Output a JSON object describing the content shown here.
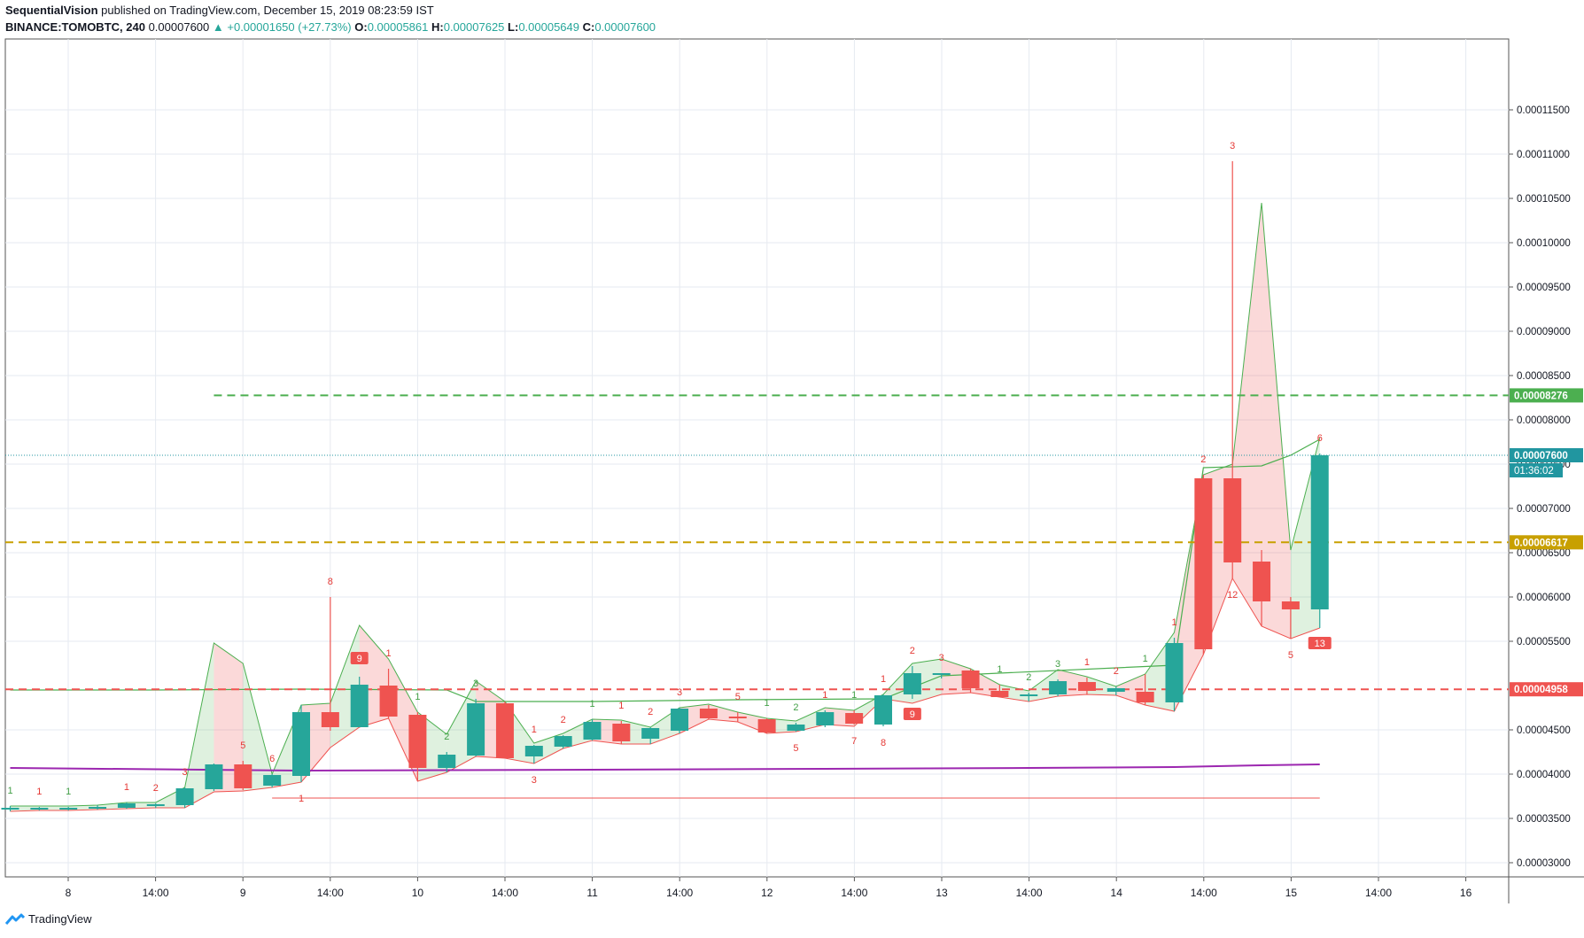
{
  "header": {
    "author": "SequentialVision",
    "published": "published on TradingView.com, December 15, 2019 08:23:59 IST",
    "symbol": "BINANCE:TOMOBTC, 240",
    "last": "0.00007600",
    "change": "▲ +0.00001650 (+27.73%)",
    "o_label": "O:",
    "o": "0.00005861",
    "h_label": "H:",
    "h": "0.00007625",
    "l_label": "L:",
    "l": "0.00005649",
    "c_label": "C:",
    "c": "0.00007600"
  },
  "footer": {
    "brand": "TradingView",
    "logo_icon": "tradingview-logo-icon"
  },
  "colors": {
    "up": "#26a69a",
    "down": "#ef5350",
    "grid": "#e6eaf0",
    "green_line": "#4caf50",
    "red_line": "#ef5350",
    "orange_line": "#c8a000",
    "purple_line": "#9c27b0",
    "dotted_line": "#2196a0"
  },
  "chart_data": {
    "type": "candlestick",
    "ylim": [
      2.84e-05,
      0.000123
    ],
    "y_ticks": [
      "0.00011500",
      "0.00011000",
      "0.00010500",
      "0.00010000",
      "0.00009500",
      "0.00009000",
      "0.00008500",
      "0.00008000",
      "0.00007500",
      "0.00007000",
      "0.00006500",
      "0.00006000",
      "0.00005500",
      "0.00004500",
      "0.00004000",
      "0.00003500",
      "0.00003000"
    ],
    "x_ticks": [
      "8",
      "14:00",
      "9",
      "14:00",
      "10",
      "14:00",
      "11",
      "14:00",
      "12",
      "14:00",
      "13",
      "14:00",
      "14",
      "14:00",
      "15",
      "14:00",
      "16"
    ],
    "candles": [
      {
        "o": 3.62e-05,
        "h": 3.64e-05,
        "l": 3.58e-05,
        "c": 3.62e-05
      },
      {
        "o": 3.61e-05,
        "h": 3.63e-05,
        "l": 3.59e-05,
        "c": 3.62e-05
      },
      {
        "o": 3.62e-05,
        "h": 3.63e-05,
        "l": 3.59e-05,
        "c": 3.62e-05
      },
      {
        "o": 3.62e-05,
        "h": 3.65e-05,
        "l": 3.6e-05,
        "c": 3.63e-05
      },
      {
        "o": 3.62e-05,
        "h": 3.68e-05,
        "l": 3.61e-05,
        "c": 3.67e-05
      },
      {
        "o": 3.66e-05,
        "h": 3.67e-05,
        "l": 3.62e-05,
        "c": 3.66e-05
      },
      {
        "o": 3.65e-05,
        "h": 3.85e-05,
        "l": 3.62e-05,
        "c": 3.84e-05
      },
      {
        "o": 3.83e-05,
        "h": 4.12e-05,
        "l": 3.81e-05,
        "c": 4.11e-05
      },
      {
        "o": 4.11e-05,
        "h": 4.15e-05,
        "l": 3.82e-05,
        "c": 3.84e-05
      },
      {
        "o": 3.87e-05,
        "h": 4e-05,
        "l": 3.85e-05,
        "c": 3.99e-05
      },
      {
        "o": 3.98e-05,
        "h": 4.78e-05,
        "l": 3.91e-05,
        "c": 4.7e-05
      },
      {
        "o": 4.7e-05,
        "h": 6e-05,
        "l": 4.49e-05,
        "c": 4.53e-05
      },
      {
        "o": 4.53e-05,
        "h": 5.1e-05,
        "l": 4.53e-05,
        "c": 5.01e-05
      },
      {
        "o": 5e-05,
        "h": 5.19e-05,
        "l": 4.63e-05,
        "c": 4.65e-05
      },
      {
        "o": 4.67e-05,
        "h": 4.7e-05,
        "l": 3.92e-05,
        "c": 4.07e-05
      },
      {
        "o": 4.07e-05,
        "h": 4.25e-05,
        "l": 4.02e-05,
        "c": 4.22e-05
      },
      {
        "o": 4.21e-05,
        "h": 4.85e-05,
        "l": 4.2e-05,
        "c": 4.8e-05
      },
      {
        "o": 4.8e-05,
        "h": 4.82e-05,
        "l": 4.18e-05,
        "c": 4.18e-05
      },
      {
        "o": 4.2e-05,
        "h": 4.33e-05,
        "l": 4.12e-05,
        "c": 4.32e-05
      },
      {
        "o": 4.31e-05,
        "h": 4.44e-05,
        "l": 4.29e-05,
        "c": 4.43e-05
      },
      {
        "o": 4.39e-05,
        "h": 4.62e-05,
        "l": 4.38e-05,
        "c": 4.59e-05
      },
      {
        "o": 4.57e-05,
        "h": 4.6e-05,
        "l": 4.34e-05,
        "c": 4.37e-05
      },
      {
        "o": 4.4e-05,
        "h": 4.53e-05,
        "l": 4.34e-05,
        "c": 4.52e-05
      },
      {
        "o": 4.49e-05,
        "h": 4.75e-05,
        "l": 4.46e-05,
        "c": 4.74e-05
      },
      {
        "o": 4.74e-05,
        "h": 4.78e-05,
        "l": 4.62e-05,
        "c": 4.63e-05
      },
      {
        "o": 4.65e-05,
        "h": 4.7e-05,
        "l": 4.59e-05,
        "c": 4.63e-05
      },
      {
        "o": 4.62e-05,
        "h": 4.63e-05,
        "l": 4.46e-05,
        "c": 4.47e-05
      },
      {
        "o": 4.49e-05,
        "h": 4.58e-05,
        "l": 4.48e-05,
        "c": 4.56e-05
      },
      {
        "o": 4.55e-05,
        "h": 4.72e-05,
        "l": 4.53e-05,
        "c": 4.7e-05
      },
      {
        "o": 4.69e-05,
        "h": 4.72e-05,
        "l": 4.56e-05,
        "c": 4.57e-05
      },
      {
        "o": 4.56e-05,
        "h": 4.9e-05,
        "l": 4.54e-05,
        "c": 4.89e-05
      },
      {
        "o": 4.9e-05,
        "h": 5.22e-05,
        "l": 4.85e-05,
        "c": 5.14e-05
      },
      {
        "o": 5.12e-05,
        "h": 5.14e-05,
        "l": 5.08e-05,
        "c": 5.14e-05
      },
      {
        "o": 5.17e-05,
        "h": 5.19e-05,
        "l": 4.92e-05,
        "c": 4.97e-05
      },
      {
        "o": 4.94e-05,
        "h": 5.01e-05,
        "l": 4.87e-05,
        "c": 4.87e-05
      },
      {
        "o": 4.88e-05,
        "h": 4.92e-05,
        "l": 4.82e-05,
        "c": 4.9e-05
      },
      {
        "o": 4.9e-05,
        "h": 5.07e-05,
        "l": 4.88e-05,
        "c": 5.05e-05
      },
      {
        "o": 5.04e-05,
        "h": 5.09e-05,
        "l": 4.9e-05,
        "c": 4.94e-05
      },
      {
        "o": 4.93e-05,
        "h": 4.99e-05,
        "l": 4.89e-05,
        "c": 4.97e-05
      },
      {
        "o": 4.93e-05,
        "h": 5.13e-05,
        "l": 4.78e-05,
        "c": 4.81e-05
      },
      {
        "o": 4.81e-05,
        "h": 5.54e-05,
        "l": 4.71e-05,
        "c": 5.48e-05
      },
      {
        "o": 7.34e-05,
        "h": 7.38e-05,
        "l": 5.35e-05,
        "c": 5.41e-05
      },
      {
        "o": 7.34e-05,
        "h": 0.0001092,
        "l": 6.21e-05,
        "c": 6.39e-05
      },
      {
        "o": 6.4e-05,
        "h": 6.53e-05,
        "l": 5.67e-05,
        "c": 5.95e-05
      },
      {
        "o": 5.95e-05,
        "h": 6e-05,
        "l": 5.53e-05,
        "c": 5.86e-05
      },
      {
        "o": 5.86e-05,
        "h": 7.62e-05,
        "l": 5.65e-05,
        "c": 7.6e-05
      }
    ],
    "horizontal_levels": [
      {
        "label": "0.00008276",
        "value": 8.276e-05,
        "style": "dashed",
        "color": "#4caf50"
      },
      {
        "label": "0.00007600",
        "value": 7.6e-05,
        "style": "dotted",
        "color": "#2196a0",
        "sublabel": "01:36:02"
      },
      {
        "label": "0.00006617",
        "value": 6.617e-05,
        "style": "dashed",
        "color": "#c8a000"
      },
      {
        "label": "0.00004958",
        "value": 4.958e-05,
        "style": "dashed",
        "color": "#ef5350"
      }
    ],
    "extra_lines": [
      {
        "name": "support",
        "value": 3.73e-05,
        "color": "#ef5350"
      }
    ],
    "upper_band": [
      3.64e-05,
      3.64e-05,
      3.64e-05,
      3.65e-05,
      3.68e-05,
      3.68e-05,
      3.85e-05,
      5.48e-05,
      5.25e-05,
      4e-05,
      4.78e-05,
      4.8e-05,
      5.68e-05,
      5.3e-05,
      4.7e-05,
      4.45e-05,
      5.05e-05,
      4.82e-05,
      4.35e-05,
      4.46e-05,
      4.62e-05,
      4.61e-05,
      4.53e-05,
      4.75e-05,
      4.79e-05,
      4.7e-05,
      4.63e-05,
      4.6e-05,
      4.75e-05,
      4.72e-05,
      4.9e-05,
      5.25e-05,
      5.3e-05,
      5.19e-05,
      5.01e-05,
      4.94e-05,
      5.18e-05,
      5.1e-05,
      4.99e-05,
      5.13e-05,
      5.6e-05,
      7.38e-05,
      7.5e-05,
      0.0001045,
      6.53e-05,
      7.8e-05
    ],
    "lower_band": [
      3.58e-05,
      3.59e-05,
      3.59e-05,
      3.6e-05,
      3.61e-05,
      3.62e-05,
      3.62e-05,
      3.8e-05,
      3.81e-05,
      3.85e-05,
      3.91e-05,
      4.3e-05,
      4.53e-05,
      4.63e-05,
      3.92e-05,
      4.02e-05,
      4.2e-05,
      4.18e-05,
      4.12e-05,
      4.29e-05,
      4.38e-05,
      4.34e-05,
      4.34e-05,
      4.46e-05,
      4.62e-05,
      4.59e-05,
      4.46e-05,
      4.48e-05,
      4.56e-05,
      4.54e-05,
      4.85e-05,
      4.8e-05,
      4.9e-05,
      4.92e-05,
      4.87e-05,
      4.82e-05,
      4.88e-05,
      4.9e-05,
      4.89e-05,
      4.78e-05,
      4.71e-05,
      5.35e-05,
      6.21e-05,
      5.67e-05,
      5.53e-05,
      5.65e-05
    ],
    "trend_line": [
      [
        0,
        4.95e-05
      ],
      [
        5,
        4.95e-05
      ],
      [
        10,
        4.96e-05
      ],
      [
        15,
        4.95e-05
      ],
      [
        16,
        4.82e-05
      ],
      [
        18,
        4.82e-05
      ],
      [
        20,
        4.82e-05
      ],
      [
        25,
        4.84e-05
      ],
      [
        30,
        4.85e-05
      ],
      [
        32,
        5.11e-05
      ],
      [
        40,
        5.23e-05
      ],
      [
        41,
        7.46e-05
      ],
      [
        43,
        7.48e-05
      ],
      [
        44,
        7.6e-05
      ],
      [
        45,
        7.78e-05
      ]
    ],
    "ma_line": [
      [
        0,
        4.07e-05
      ],
      [
        10,
        4.04e-05
      ],
      [
        20,
        4.05e-05
      ],
      [
        28,
        4.06e-05
      ],
      [
        35,
        4.07e-05
      ],
      [
        40,
        4.08e-05
      ],
      [
        43,
        4.1e-05
      ],
      [
        45,
        4.11e-05
      ]
    ],
    "counts_above": [
      {
        "i": 0,
        "t": "1",
        "c": "green"
      },
      {
        "i": 1,
        "t": "1",
        "c": "red"
      },
      {
        "i": 2,
        "t": "1",
        "c": "green"
      },
      {
        "i": 4,
        "t": "1",
        "c": "red"
      },
      {
        "i": 5,
        "t": "2",
        "c": "red"
      },
      {
        "i": 6,
        "t": "3",
        "c": "red"
      },
      {
        "i": 8,
        "t": "5",
        "c": "red"
      },
      {
        "i": 9,
        "t": "6",
        "c": "red"
      },
      {
        "i": 11,
        "t": "8",
        "c": "red"
      },
      {
        "i": 13,
        "t": "1",
        "c": "red"
      },
      {
        "i": 14,
        "t": "1",
        "c": "green"
      },
      {
        "i": 15,
        "t": "2",
        "c": "green"
      },
      {
        "i": 16,
        "t": "3",
        "c": "green"
      },
      {
        "i": 18,
        "t": "1",
        "c": "red"
      },
      {
        "i": 19,
        "t": "2",
        "c": "red"
      },
      {
        "i": 20,
        "t": "1",
        "c": "green"
      },
      {
        "i": 21,
        "t": "1",
        "c": "red"
      },
      {
        "i": 22,
        "t": "2",
        "c": "red"
      },
      {
        "i": 23,
        "t": "3",
        "c": "red"
      },
      {
        "i": 25,
        "t": "5",
        "c": "red"
      },
      {
        "i": 26,
        "t": "1",
        "c": "green"
      },
      {
        "i": 27,
        "t": "2",
        "c": "green"
      },
      {
        "i": 28,
        "t": "1",
        "c": "red"
      },
      {
        "i": 29,
        "t": "1",
        "c": "green"
      },
      {
        "i": 30,
        "t": "1",
        "c": "red"
      },
      {
        "i": 31,
        "t": "2",
        "c": "red"
      },
      {
        "i": 32,
        "t": "3",
        "c": "red"
      },
      {
        "i": 34,
        "t": "1",
        "c": "green"
      },
      {
        "i": 35,
        "t": "2",
        "c": "green"
      },
      {
        "i": 36,
        "t": "3",
        "c": "green"
      },
      {
        "i": 37,
        "t": "1",
        "c": "red"
      },
      {
        "i": 38,
        "t": "2",
        "c": "red"
      },
      {
        "i": 39,
        "t": "1",
        "c": "green"
      },
      {
        "i": 40,
        "t": "1",
        "c": "red"
      },
      {
        "i": 41,
        "t": "2",
        "c": "red"
      },
      {
        "i": 42,
        "t": "3",
        "c": "red"
      },
      {
        "i": 45,
        "t": "6",
        "c": "red"
      }
    ],
    "counts_below": [
      {
        "i": 10,
        "t": "1",
        "c": "red"
      },
      {
        "i": 18,
        "t": "3",
        "c": "red"
      },
      {
        "i": 27,
        "t": "5",
        "c": "red"
      },
      {
        "i": 29,
        "t": "7",
        "c": "red"
      },
      {
        "i": 30,
        "t": "8",
        "c": "red"
      },
      {
        "i": 42,
        "t": "12",
        "c": "red"
      },
      {
        "i": 44,
        "t": "5",
        "c": "red"
      }
    ],
    "badges": [
      {
        "i": 12,
        "t": "9",
        "pos": "above"
      },
      {
        "i": 31,
        "t": "9",
        "pos": "below"
      },
      {
        "i": 45,
        "t": "13",
        "pos": "below"
      }
    ]
  }
}
